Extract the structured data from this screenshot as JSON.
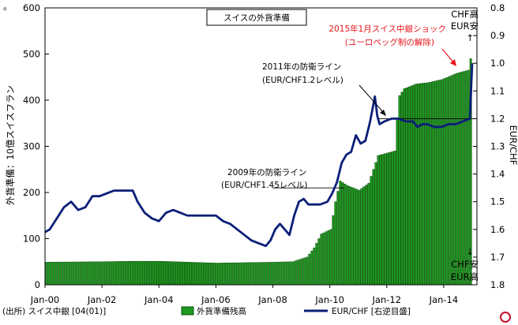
{
  "chart_data": {
    "type": "bar+line",
    "title": "スイスの外貨準備",
    "left_axis": {
      "label": "外貨準備：10億スイスフラン",
      "range": [
        0,
        600
      ],
      "ticks": [
        "0",
        "100",
        "200",
        "300",
        "400",
        "500",
        "600"
      ]
    },
    "right_axis": {
      "label": "EUR/CHF",
      "range": [
        0.8,
        1.8
      ],
      "inverted": true,
      "ticks": [
        "0.8",
        "0.9",
        "1.0",
        "1.1",
        "1.2",
        "1.3",
        "1.4",
        "1.5",
        "1.6",
        "1.7",
        "1.8"
      ],
      "top_note_lines": [
        "CHF高",
        "EUR安",
        "↑"
      ],
      "bottom_note_lines": [
        "↓",
        "CHF安",
        "EUR高"
      ]
    },
    "x_axis": {
      "ticks": [
        "Jan-00",
        "Jan-02",
        "Jan-04",
        "Jan-06",
        "Jan-08",
        "Jan-10",
        "Jan-12",
        "Jan-14"
      ],
      "start": "2000-01",
      "end": "2015-01"
    },
    "series": [
      {
        "name": "外貨準備残高",
        "type": "bar",
        "axis": "left",
        "color": "#1e9a1e",
        "edge_color": "#0d4d0d",
        "monthly_points": [
          [
            "2000-01",
            49
          ],
          [
            "2002-01",
            50
          ],
          [
            "2003-01",
            51
          ],
          [
            "2004-01",
            51
          ],
          [
            "2005-01",
            49
          ],
          [
            "2006-01",
            47
          ],
          [
            "2007-01",
            48
          ],
          [
            "2008-01",
            49
          ],
          [
            "2008-09",
            50
          ],
          [
            "2009-03",
            60
          ],
          [
            "2009-06",
            80
          ],
          [
            "2009-09",
            110
          ],
          [
            "2010-01",
            120
          ],
          [
            "2010-03",
            180
          ],
          [
            "2010-05",
            225
          ],
          [
            "2010-08",
            215
          ],
          [
            "2011-01",
            205
          ],
          [
            "2011-05",
            220
          ],
          [
            "2011-09",
            280
          ],
          [
            "2012-04",
            290
          ],
          [
            "2012-05",
            360
          ],
          [
            "2012-06",
            410
          ],
          [
            "2012-08",
            425
          ],
          [
            "2013-01",
            435
          ],
          [
            "2013-06",
            438
          ],
          [
            "2013-12",
            445
          ],
          [
            "2014-06",
            458
          ],
          [
            "2014-11",
            465
          ],
          [
            "2014-12",
            490
          ]
        ]
      },
      {
        "name": "EUR/CHF [右逆目盛]",
        "type": "line",
        "axis": "right",
        "color": "#0b1f78",
        "points": [
          [
            "2000-01",
            1.61
          ],
          [
            "2000-03",
            1.6
          ],
          [
            "2000-06",
            1.56
          ],
          [
            "2000-09",
            1.52
          ],
          [
            "2000-12",
            1.5
          ],
          [
            "2001-03",
            1.53
          ],
          [
            "2001-06",
            1.52
          ],
          [
            "2001-09",
            1.48
          ],
          [
            "2001-12",
            1.48
          ],
          [
            "2002-03",
            1.47
          ],
          [
            "2002-06",
            1.46
          ],
          [
            "2002-09",
            1.46
          ],
          [
            "2002-12",
            1.46
          ],
          [
            "2003-02",
            1.46
          ],
          [
            "2003-04",
            1.5
          ],
          [
            "2003-07",
            1.54
          ],
          [
            "2003-10",
            1.56
          ],
          [
            "2004-01",
            1.57
          ],
          [
            "2004-04",
            1.54
          ],
          [
            "2004-07",
            1.53
          ],
          [
            "2004-10",
            1.54
          ],
          [
            "2005-01",
            1.55
          ],
          [
            "2005-04",
            1.55
          ],
          [
            "2005-07",
            1.55
          ],
          [
            "2005-10",
            1.55
          ],
          [
            "2006-01",
            1.55
          ],
          [
            "2006-04",
            1.57
          ],
          [
            "2006-07",
            1.58
          ],
          [
            "2006-10",
            1.6
          ],
          [
            "2007-01",
            1.62
          ],
          [
            "2007-04",
            1.64
          ],
          [
            "2007-07",
            1.65
          ],
          [
            "2007-10",
            1.66
          ],
          [
            "2007-12",
            1.64
          ],
          [
            "2008-02",
            1.6
          ],
          [
            "2008-04",
            1.58
          ],
          [
            "2008-06",
            1.6
          ],
          [
            "2008-08",
            1.62
          ],
          [
            "2008-10",
            1.55
          ],
          [
            "2008-12",
            1.5
          ],
          [
            "2009-02",
            1.49
          ],
          [
            "2009-04",
            1.51
          ],
          [
            "2009-06",
            1.51
          ],
          [
            "2009-09",
            1.51
          ],
          [
            "2009-12",
            1.5
          ],
          [
            "2010-02",
            1.47
          ],
          [
            "2010-04",
            1.43
          ],
          [
            "2010-06",
            1.36
          ],
          [
            "2010-08",
            1.33
          ],
          [
            "2010-10",
            1.32
          ],
          [
            "2010-12",
            1.26
          ],
          [
            "2011-02",
            1.29
          ],
          [
            "2011-04",
            1.28
          ],
          [
            "2011-06",
            1.21
          ],
          [
            "2011-08",
            1.12
          ],
          [
            "2011-09",
            1.19
          ],
          [
            "2011-10",
            1.22
          ],
          [
            "2011-12",
            1.21
          ],
          [
            "2012-03",
            1.2
          ],
          [
            "2012-06",
            1.2
          ],
          [
            "2012-09",
            1.21
          ],
          [
            "2012-12",
            1.21
          ],
          [
            "2013-02",
            1.23
          ],
          [
            "2013-04",
            1.22
          ],
          [
            "2013-06",
            1.22
          ],
          [
            "2013-09",
            1.23
          ],
          [
            "2013-12",
            1.23
          ],
          [
            "2014-03",
            1.22
          ],
          [
            "2014-06",
            1.22
          ],
          [
            "2014-09",
            1.21
          ],
          [
            "2014-12",
            1.2
          ],
          [
            "2015-01",
            1.0
          ]
        ]
      }
    ],
    "annotations": {
      "title_box": "スイスの外貨準備",
      "shock_line1": "2015年1月スイス中銀ショック",
      "shock_line2": "(ユーロペッグ制の解除)",
      "floor_2011_line1": "2011年の防衛ライン",
      "floor_2011_line2": "(EUR/CHF1.2レベル)",
      "floor_2009_line1": "2009年の防衛ライン",
      "floor_2009_line2": "(EUR/CHF1.45レベル)"
    },
    "reference_lines": [
      {
        "value": 1.2,
        "axis": "right",
        "from": "2011-09",
        "to": "2015-03"
      },
      {
        "value": 1.45,
        "axis": "right",
        "from": "2008-01",
        "to": "2010-07"
      }
    ],
    "legend": {
      "bar_label": "外貨準備残高",
      "line_label": "EUR/CHF [右逆目盛]",
      "placement": "bottom"
    },
    "source": "(出所) スイス中銀 [04(01)]",
    "corner_mark": "。",
    "grid": false
  }
}
